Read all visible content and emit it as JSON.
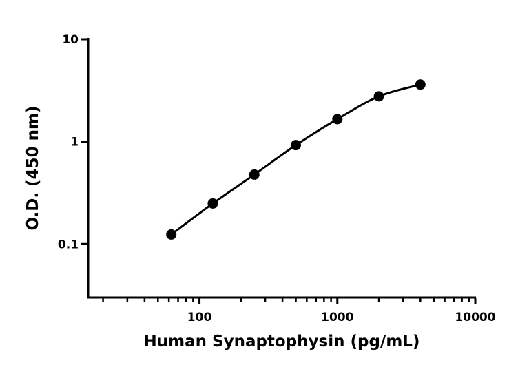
{
  "chart_data": {
    "type": "scatter",
    "x_label": "Human Synaptophysin (pg/mL)",
    "y_label": "O.D. (450 nm)",
    "x_log": true,
    "y_log": true,
    "x_minor_ticks": true,
    "xlim": [
      15.6,
      10000
    ],
    "ylim": [
      0.03,
      10
    ],
    "xticks": [
      100,
      1000,
      10000
    ],
    "yticks": [
      0.1,
      1,
      10
    ],
    "color": "#000000",
    "x": [
      62.5,
      125,
      250,
      500,
      1000,
      2000,
      4000
    ],
    "values": [
      0.124,
      0.249,
      0.477,
      0.925,
      1.66,
      2.77,
      3.61
    ]
  }
}
